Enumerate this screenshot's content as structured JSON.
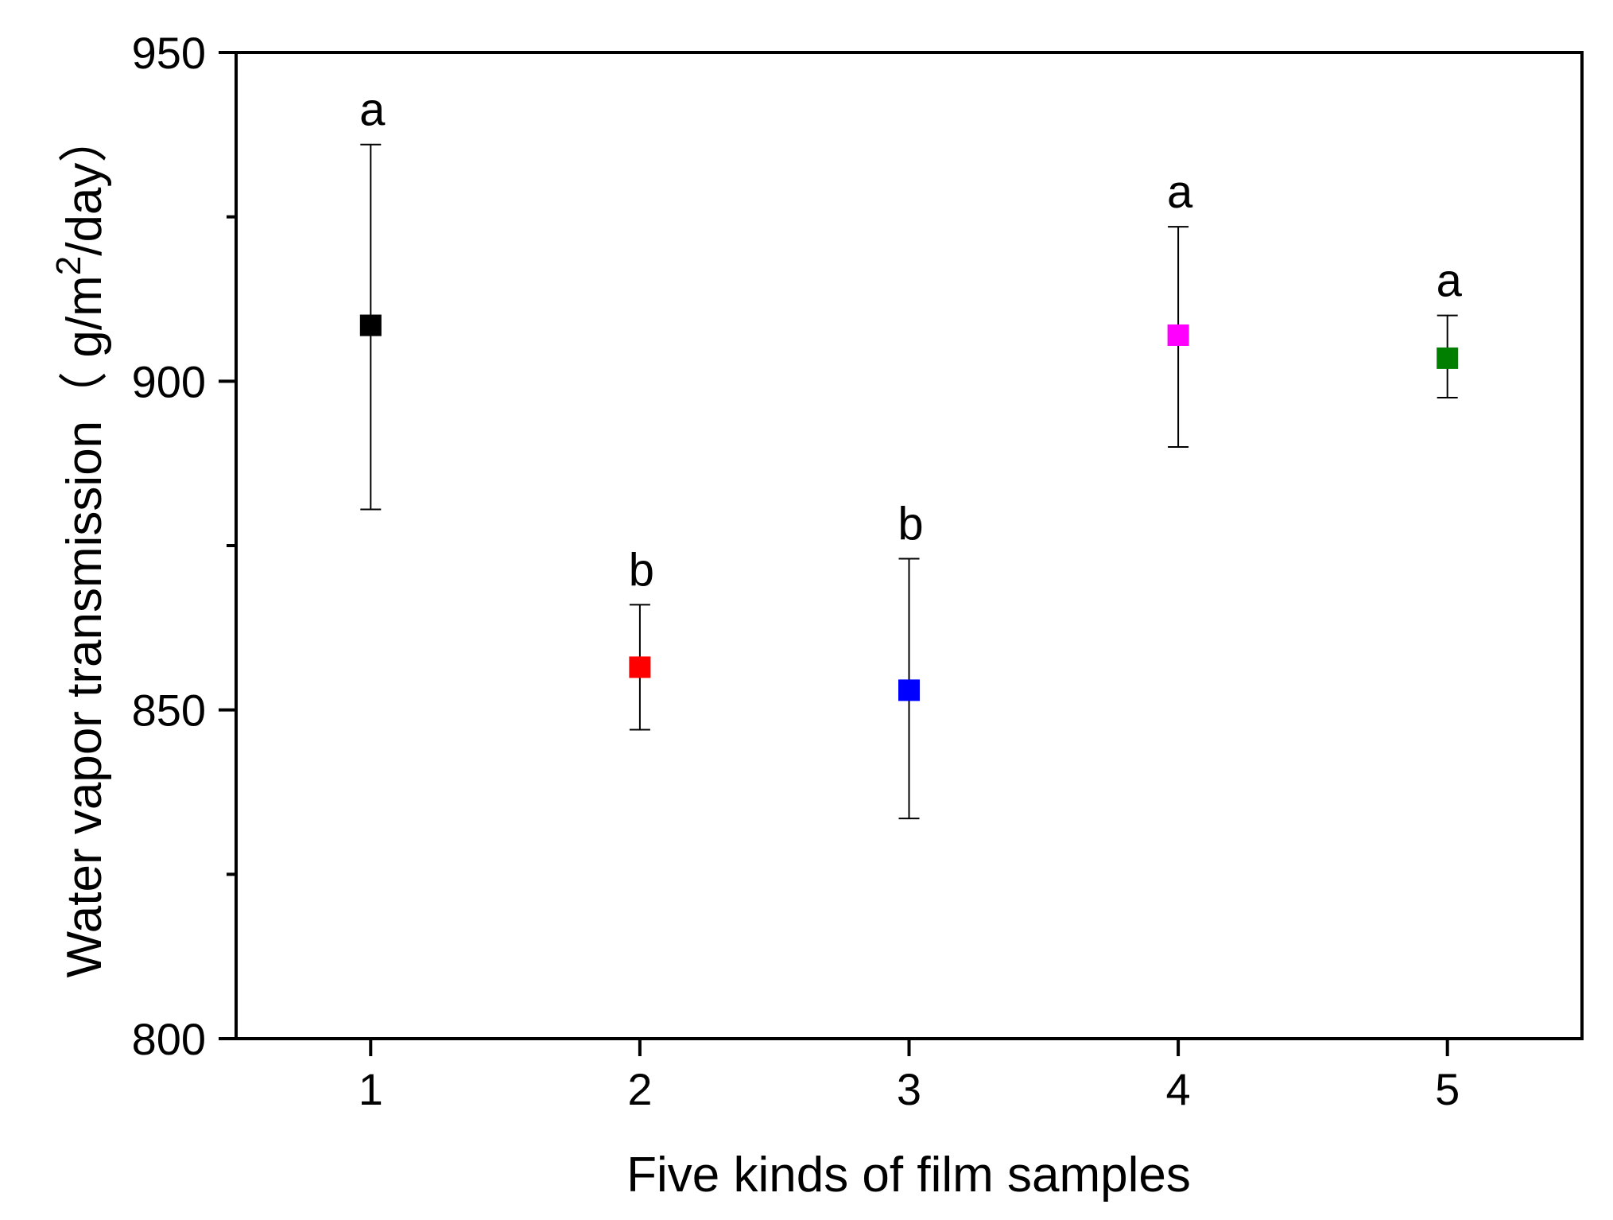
{
  "chart_data": {
    "type": "scatter",
    "xlabel": "Five kinds of film samples",
    "ylabel": {
      "main": "Water vapor transmission（ g/m",
      "superscript": "2",
      "tail": "/day）"
    },
    "xlim": [
      0.5,
      5.5
    ],
    "ylim": [
      800,
      950
    ],
    "x_ticks": [
      1,
      2,
      3,
      4,
      5
    ],
    "y_ticks_labeled": [
      800,
      850,
      900,
      950
    ],
    "y_ticks_minor": [
      825,
      875,
      925
    ],
    "grid": false,
    "legend": "none",
    "points": [
      {
        "x": 1,
        "y": 908.5,
        "err_low": 880.5,
        "err_high": 936,
        "label": "a",
        "color": "#000000"
      },
      {
        "x": 2,
        "y": 856.5,
        "err_low": 847,
        "err_high": 866,
        "label": "b",
        "color": "#ff0000"
      },
      {
        "x": 3,
        "y": 853,
        "err_low": 833.5,
        "err_high": 873,
        "label": "b",
        "color": "#0000ff"
      },
      {
        "x": 4,
        "y": 907,
        "err_low": 890,
        "err_high": 923.5,
        "label": "a",
        "color": "#ff00ff"
      },
      {
        "x": 5,
        "y": 903.5,
        "err_low": 897.5,
        "err_high": 910,
        "label": "a",
        "color": "#007f00"
      }
    ]
  }
}
